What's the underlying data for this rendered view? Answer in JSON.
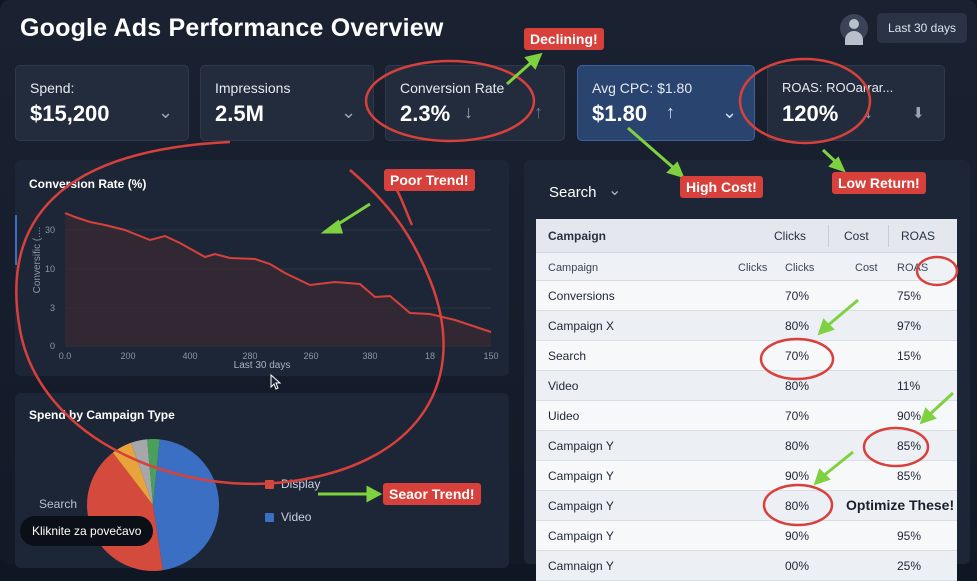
{
  "header": {
    "title": "Google Ads Performance Overview",
    "date_range": "Last 30 days"
  },
  "kpis": [
    {
      "label": "Spend:",
      "value": "$15,200",
      "icon": "chevron-down-icon"
    },
    {
      "label": "Impressions",
      "value": "2.5M",
      "icon": "chevron-down-icon"
    },
    {
      "label": "Conversion Rate",
      "value": "2.3%",
      "icon": "arrow-down-icon"
    },
    {
      "label": "Avg CPC: $1.80",
      "value": "$1.80",
      "icon": "arrow-up-icon"
    },
    {
      "label": "ROAS: ROOarrar...",
      "value": "120%",
      "icon": "arrow-down-icon"
    }
  ],
  "conversion_chart": {
    "title": "Conversion Rate (%)",
    "y_axis_label": "Conversific (....",
    "y_ticks": [
      "0",
      "3",
      "10",
      "30"
    ],
    "x_ticks": [
      "0.0",
      "200",
      "400",
      "280",
      "260",
      "380",
      "18",
      "150"
    ],
    "x_axis_label": "Last 30 days",
    "line_color": "#d8413b"
  },
  "spend_chart": {
    "title": "Spend by Campaign Type",
    "side_label": "Search",
    "legend": [
      {
        "label": "Display",
        "color": "#d44a3c"
      },
      {
        "label": "Video",
        "color": "#3a6fc4"
      }
    ],
    "slice_colors": [
      "#3a6fc4",
      "#d44a3c",
      "#e8a33a",
      "#a5a7ab",
      "#4aa05a"
    ]
  },
  "campaign_panel": {
    "dropdown_label": "Search",
    "header": {
      "campaign": "Campaign",
      "clicks": "Clicks",
      "cost": "Cost",
      "roas": "ROAS"
    },
    "subheader": {
      "campaign": "Campaign",
      "clicks_a": "Clicks",
      "clicks_b": "Clicks",
      "cost": "Cost",
      "roas": "ROAS"
    },
    "rows": [
      {
        "name": "Conversions",
        "clicks": "70%",
        "roas": "75%"
      },
      {
        "name": "Campaign X",
        "clicks": "80%",
        "roas": "97%"
      },
      {
        "name": "Search",
        "clicks": "70%",
        "roas": "15%"
      },
      {
        "name": "Video",
        "clicks": "80%",
        "roas": "11%"
      },
      {
        "name": "Uideo",
        "clicks": "70%",
        "roas": "90%"
      },
      {
        "name": "Campaign Y",
        "clicks": "80%",
        "roas": "85%"
      },
      {
        "name": "Campaign Y",
        "clicks": "90%",
        "roas": "85%"
      },
      {
        "name": "Campaign Y",
        "clicks": "80%",
        "roas": ""
      },
      {
        "name": "Campaign Y",
        "clicks": "90%",
        "roas": "95%"
      },
      {
        "name": "Camnaign Y",
        "clicks": "00%",
        "roas": "25%"
      }
    ]
  },
  "annotations": {
    "declining": "Declining!",
    "poor_trend": "Poor Trend!",
    "high_cost": "High Cost!",
    "low_return": "Low Return!",
    "seaor_trend": "Seaor Trend!",
    "optimize": "Optimize These!",
    "circle_color": "#d8413b",
    "arrow_color": "#7ed23f"
  },
  "tooltip": "Kliknite za povečavo"
}
